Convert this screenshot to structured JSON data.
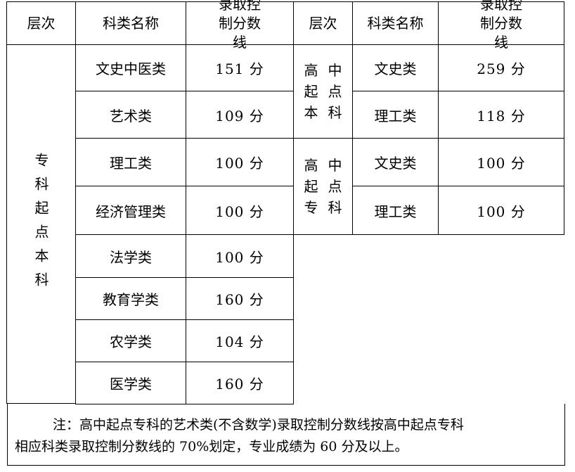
{
  "headers": {
    "level": "层次",
    "subject": "科类名称",
    "score": "录取控制分数线"
  },
  "left_level": "专科起点本科",
  "left_rows": [
    {
      "subject": "文史中医类",
      "score": "151 分"
    },
    {
      "subject": "艺术类",
      "score": "109 分"
    },
    {
      "subject": "理工类",
      "score": "100 分"
    },
    {
      "subject": "经济管理类",
      "score": "100 分"
    },
    {
      "subject": "法学类",
      "score": "100 分"
    },
    {
      "subject": "教育学类",
      "score": "160 分"
    },
    {
      "subject": "农学类",
      "score": "104 分"
    },
    {
      "subject": "医学类",
      "score": "160 分"
    }
  ],
  "right_groups": [
    {
      "level_chars": [
        "高",
        "中",
        "起",
        "点",
        "本",
        "科"
      ],
      "rows": [
        {
          "subject": "文史类",
          "score": "259 分"
        },
        {
          "subject": "理工类",
          "score": "118 分"
        }
      ]
    },
    {
      "level_chars": [
        "高",
        "中",
        "起",
        "点",
        "专",
        "科"
      ],
      "rows": [
        {
          "subject": "文史类",
          "score": "100 分"
        },
        {
          "subject": "理工类",
          "score": "100 分"
        }
      ]
    }
  ],
  "note": {
    "line1": "注：高中起点专科的艺术类(不含数学)录取控制分数线按高中起点专科",
    "line2": "相应科类录取控制分数线的 70%划定，专业成绩为 60 分及以上。"
  }
}
